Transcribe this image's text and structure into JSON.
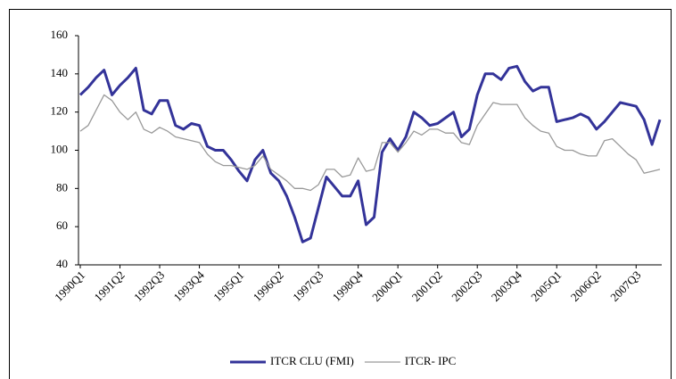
{
  "chart_data": {
    "type": "line",
    "categories": [
      "1990Q1",
      null,
      null,
      null,
      null,
      "1991Q2",
      null,
      null,
      null,
      null,
      "1992Q3",
      null,
      null,
      null,
      null,
      "1993Q4",
      null,
      null,
      null,
      null,
      "1995Q1",
      null,
      null,
      null,
      null,
      "1996Q2",
      null,
      null,
      null,
      null,
      "1997Q3",
      null,
      null,
      null,
      null,
      "1998Q4",
      null,
      null,
      null,
      null,
      "2000Q1",
      null,
      null,
      null,
      null,
      "2001Q2",
      null,
      null,
      null,
      null,
      "2002Q3",
      null,
      null,
      null,
      null,
      "2003Q4",
      null,
      null,
      null,
      null,
      "2005Q1",
      null,
      null,
      null,
      null,
      "2006Q2",
      null,
      null,
      null,
      null,
      "2007Q3",
      null,
      null,
      null
    ],
    "series": [
      {
        "name": "ITCR CLU (FMI)",
        "color": "#333399",
        "width": 3,
        "values": [
          129,
          133,
          138,
          142,
          129,
          134,
          138,
          143,
          121,
          119,
          126,
          126,
          113,
          111,
          114,
          113,
          102,
          100,
          100,
          95,
          89,
          84,
          95,
          100,
          88,
          84,
          76,
          65,
          52,
          54,
          70,
          86,
          81,
          76,
          76,
          84,
          61,
          65,
          99,
          106,
          100,
          107,
          120,
          117,
          113,
          114,
          117,
          120,
          107,
          111,
          129,
          140,
          140,
          137,
          143,
          144,
          136,
          131,
          133,
          133,
          115,
          116,
          117,
          119,
          117,
          111,
          115,
          120,
          125,
          124,
          123,
          116,
          103,
          116
        ]
      },
      {
        "name": "ITCR- IPC",
        "color": "#999999",
        "width": 1.3,
        "values": [
          110,
          113,
          121,
          129,
          126,
          120,
          116,
          120,
          111,
          109,
          112,
          110,
          107,
          106,
          105,
          104,
          98,
          94,
          92,
          92,
          91,
          90,
          92,
          97,
          90,
          87,
          84,
          80,
          80,
          79,
          82,
          90,
          90,
          86,
          87,
          96,
          89,
          90,
          104,
          104,
          99,
          104,
          110,
          108,
          111,
          111,
          109,
          109,
          104,
          103,
          113,
          119,
          125,
          124,
          124,
          124,
          117,
          113,
          110,
          109,
          102,
          100,
          100,
          98,
          97,
          97,
          105,
          106,
          102,
          98,
          95,
          88,
          89,
          90
        ]
      }
    ],
    "ylim": [
      40,
      160
    ],
    "yticks": [
      40,
      60,
      80,
      100,
      120,
      140,
      160
    ]
  }
}
